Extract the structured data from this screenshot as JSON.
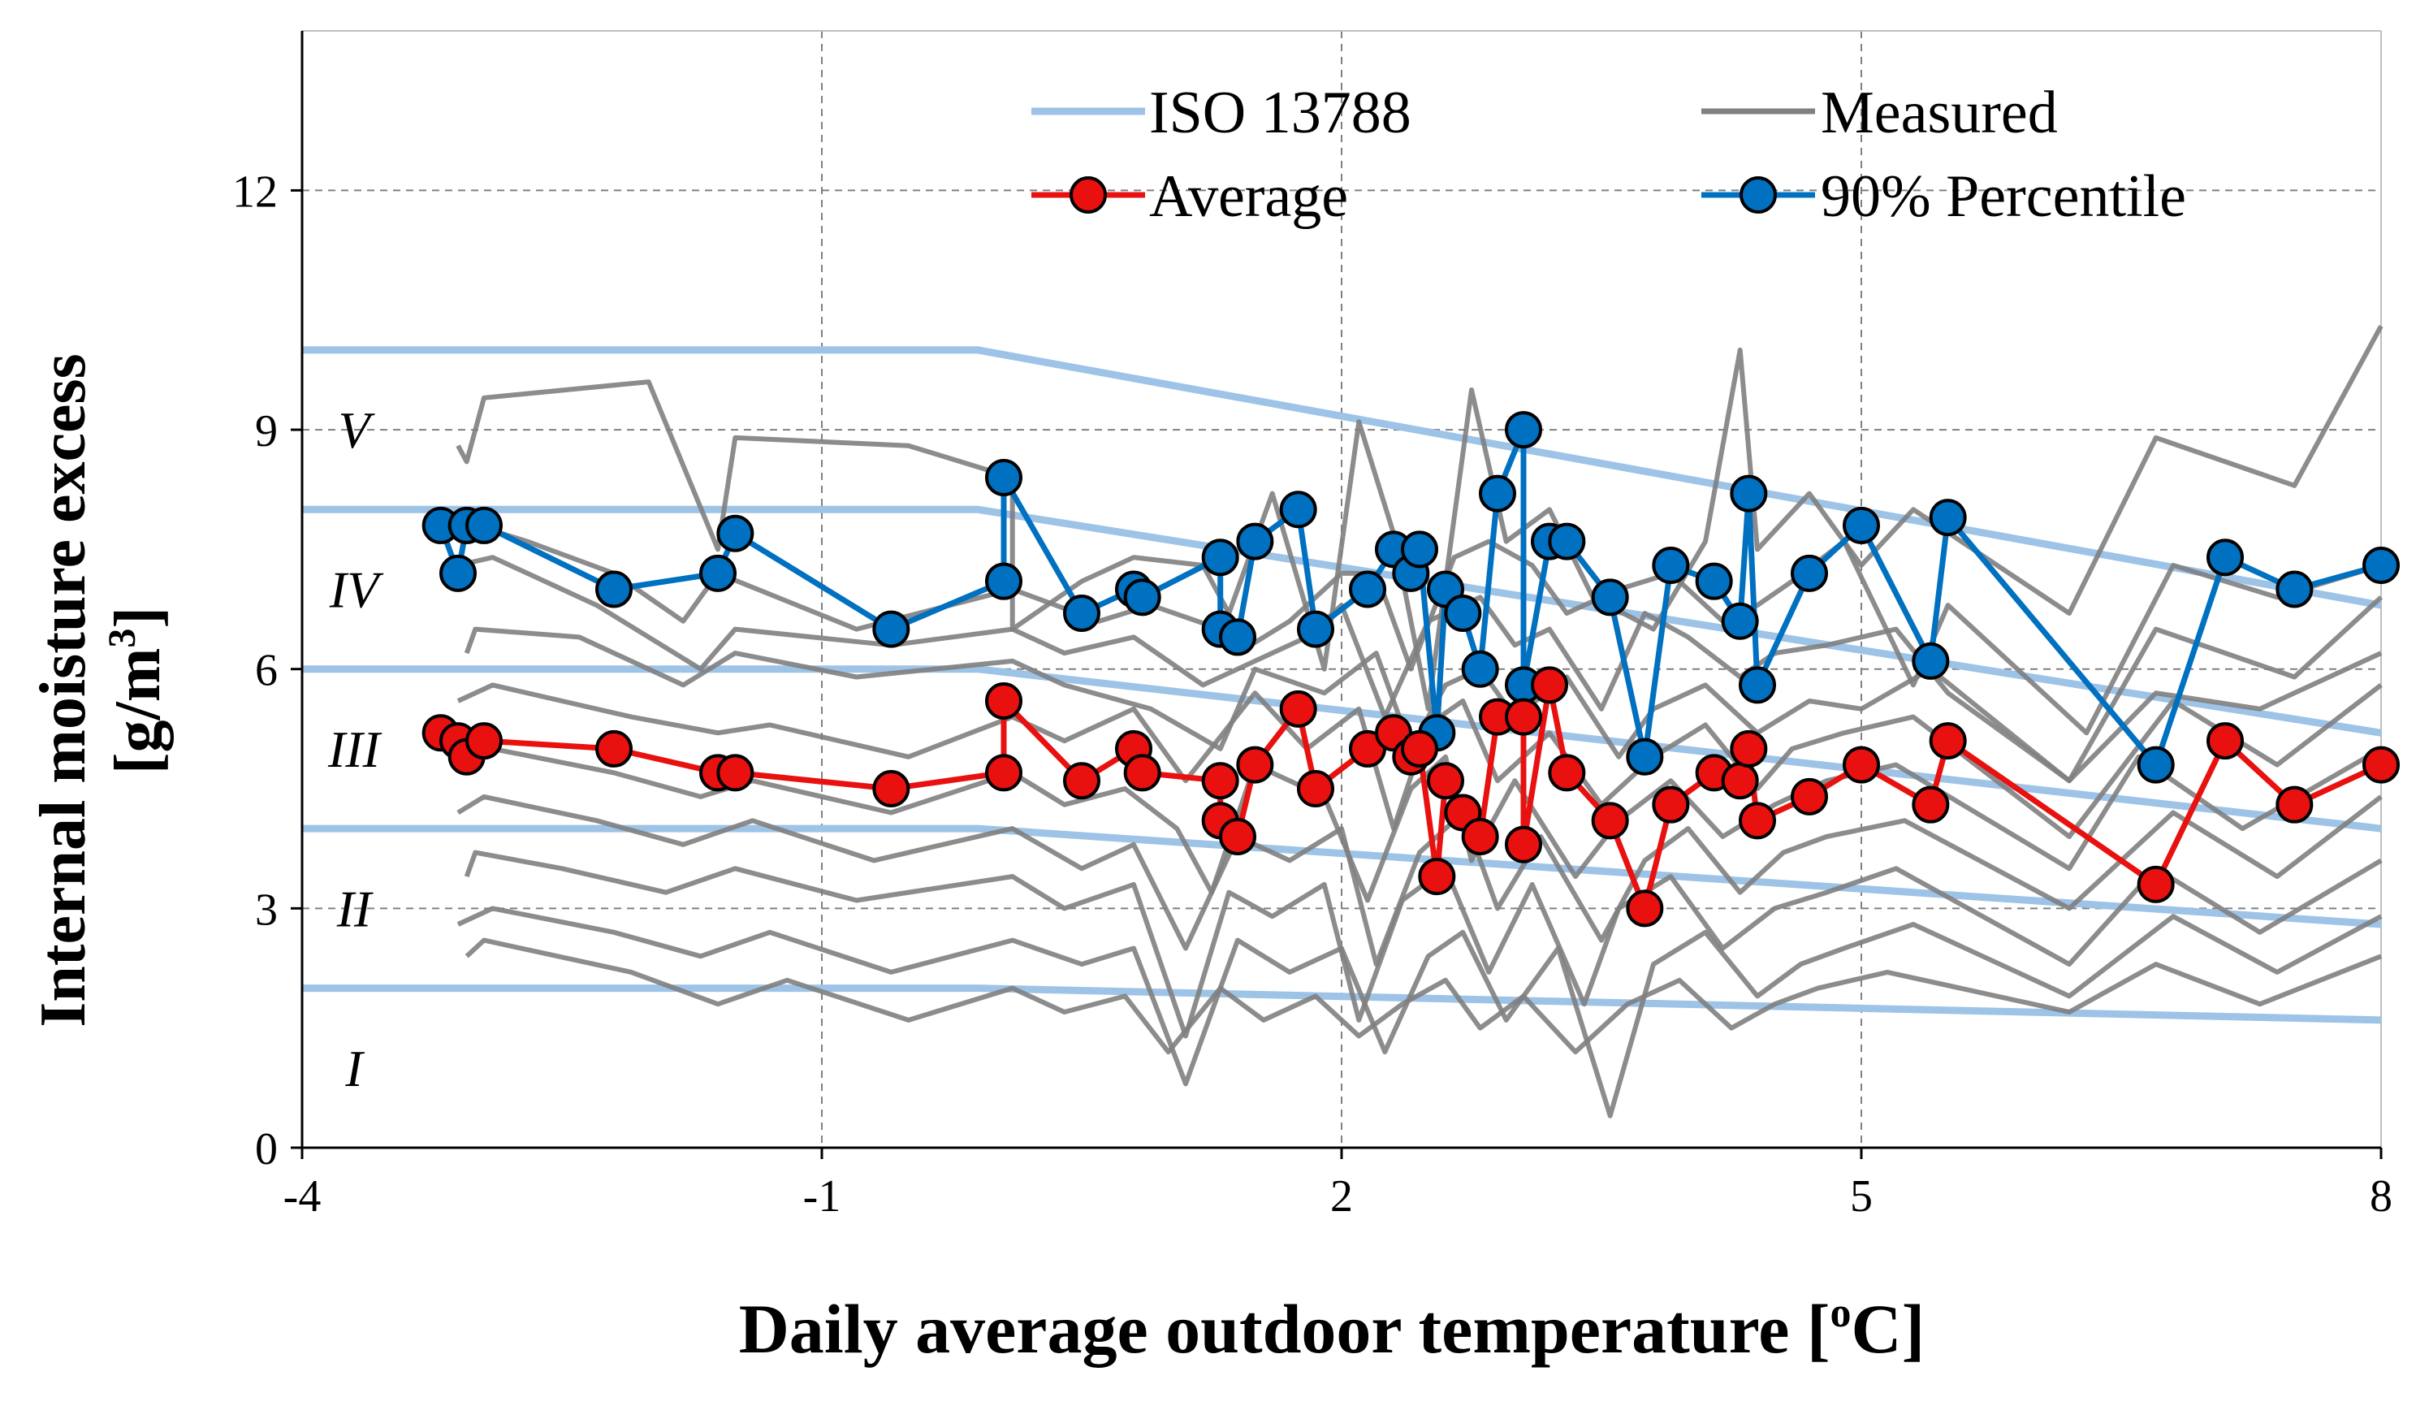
{
  "chart_data": {
    "type": "line",
    "xlabel": "Daily average outdoor temperature [oC]",
    "xlabel_parts": {
      "pre": "Daily average outdoor temperature [",
      "sup": "o",
      "post": "C]"
    },
    "ylabel_line1": "Internal moisture excess",
    "ylabel_line2": {
      "pre": "[g/m",
      "sup": "3",
      "post": "]"
    },
    "xlim": [
      -4,
      8
    ],
    "ylim": [
      0,
      14
    ],
    "x_ticks": [
      -4,
      -1,
      2,
      5,
      8
    ],
    "x_tick_labels": [
      "-4",
      "-1",
      "2",
      "5",
      "8"
    ],
    "y_ticks": [
      0,
      3,
      6,
      9,
      12
    ],
    "y_tick_labels": [
      "0",
      "3",
      "6",
      "9",
      "12"
    ],
    "grid": "dashed",
    "legend_position": "top",
    "legend": {
      "iso": "ISO 13788",
      "measured": "Measured",
      "average": "Average",
      "p90": "90% Percentile"
    },
    "colors": {
      "iso": "#9dc3e6",
      "measured": "#808080",
      "average": "#e8110f",
      "p90": "#0070c0",
      "marker_edge": "#000000",
      "grid": "#808080"
    },
    "zone_labels": [
      {
        "label": "I",
        "x": -3.7,
        "y": 1
      },
      {
        "label": "II",
        "x": -3.7,
        "y": 3
      },
      {
        "label": "III",
        "x": -3.7,
        "y": 5
      },
      {
        "label": "IV",
        "x": -3.7,
        "y": 7
      },
      {
        "label": "V",
        "x": -3.7,
        "y": 9
      }
    ],
    "iso_lines": [
      {
        "name": "I/II",
        "x": [
          -4,
          -0.1,
          8
        ],
        "y": [
          2,
          2,
          1.6
        ]
      },
      {
        "name": "II/III",
        "x": [
          -4,
          -0.1,
          8
        ],
        "y": [
          4,
          4,
          2.8
        ]
      },
      {
        "name": "III/IV",
        "x": [
          -4,
          -0.1,
          8
        ],
        "y": [
          6,
          6,
          4
        ]
      },
      {
        "name": "IV/V",
        "x": [
          -4,
          -0.1,
          8
        ],
        "y": [
          8,
          8,
          5.2
        ]
      },
      {
        "name": "V",
        "x": [
          -4,
          -0.1,
          8
        ],
        "y": [
          10,
          10,
          6.8
        ]
      }
    ],
    "measured_series": [
      {
        "x": [
          -3.1,
          -3.05,
          -2.95,
          -2.0,
          -1.6,
          -1.5,
          -0.5,
          0.1,
          0.1,
          0.5,
          0.8,
          1.2,
          1.35,
          1.6,
          1.9,
          2.1,
          2.3,
          2.5,
          2.75,
          2.95,
          3.2,
          3.45,
          3.8,
          4.1,
          4.3,
          4.4,
          4.7,
          5.0,
          5.3,
          6.2,
          6.7,
          7.5,
          8.0
        ],
        "y": [
          8.8,
          8.6,
          9.4,
          9.6,
          7.5,
          8.9,
          8.8,
          8.4,
          6.5,
          7.1,
          7.4,
          7.3,
          6.7,
          8.2,
          6.0,
          9.1,
          7.7,
          5.5,
          9.5,
          7.6,
          8.0,
          6.9,
          6.5,
          7.6,
          10.0,
          7.5,
          8.2,
          7.3,
          8.0,
          6.7,
          8.9,
          8.3,
          10.3
        ]
      },
      {
        "x": [
          -3.0,
          -2.7,
          -2.2,
          -1.8,
          -1.6,
          -0.8,
          0.1,
          0.6,
          0.9,
          1.3,
          1.4,
          1.7,
          2.0,
          2.2,
          2.4,
          2.65,
          2.85,
          3.1,
          3.3,
          3.6,
          3.9,
          4.2,
          4.4,
          4.6,
          4.9,
          5.3,
          5.5,
          6.3,
          6.8,
          7.4,
          8.0
        ],
        "y": [
          7.8,
          7.6,
          7.2,
          6.6,
          7.2,
          6.5,
          7.0,
          6.6,
          6.8,
          6.5,
          6.2,
          6.6,
          7.2,
          7.2,
          6.0,
          7.4,
          7.6,
          7.3,
          6.7,
          7.0,
          7.2,
          6.6,
          6.8,
          7.1,
          7.6,
          5.8,
          6.8,
          5.2,
          7.3,
          6.9,
          7.3
        ]
      },
      {
        "x": [
          -3.1,
          -2.9,
          -2.3,
          -1.7,
          -1.5,
          -0.6,
          0.1,
          0.4,
          0.8,
          1.2,
          1.4,
          1.8,
          2.0,
          2.25,
          2.5,
          2.8,
          3.0,
          3.2,
          3.5,
          3.75,
          4.0,
          4.3,
          4.5,
          4.8,
          5.2,
          5.5,
          6.2,
          6.7,
          7.5,
          8.0
        ],
        "y": [
          7.3,
          7.4,
          6.8,
          6.0,
          6.5,
          6.3,
          6.5,
          6.2,
          6.4,
          5.8,
          6.0,
          6.4,
          6.8,
          5.4,
          6.6,
          6.9,
          6.3,
          6.5,
          5.5,
          6.7,
          6.4,
          5.9,
          6.2,
          6.3,
          6.5,
          5.7,
          4.6,
          6.5,
          5.9,
          6.9
        ]
      },
      {
        "x": [
          -3.05,
          -3.0,
          -2.4,
          -1.8,
          -1.5,
          -0.8,
          0.1,
          0.4,
          0.9,
          1.3,
          1.5,
          1.9,
          2.2,
          2.4,
          2.6,
          2.8,
          3.0,
          3.3,
          3.6,
          3.8,
          4.1,
          4.4,
          4.7,
          5.0,
          5.4,
          6.2,
          6.7,
          7.3,
          8.0
        ],
        "y": [
          6.2,
          6.5,
          6.4,
          5.8,
          6.2,
          5.9,
          6.1,
          5.8,
          5.5,
          5.0,
          6.0,
          5.7,
          6.2,
          5.0,
          5.8,
          6.0,
          5.4,
          5.9,
          4.9,
          5.5,
          5.8,
          5.2,
          5.6,
          5.5,
          6.0,
          4.6,
          5.7,
          5.5,
          6.2
        ]
      },
      {
        "x": [
          -3.1,
          -2.9,
          -2.1,
          -1.6,
          -1.3,
          -0.5,
          0.1,
          0.4,
          0.8,
          1.1,
          1.5,
          1.8,
          2.1,
          2.3,
          2.5,
          2.7,
          2.9,
          3.2,
          3.5,
          3.8,
          4.1,
          4.4,
          4.6,
          4.9,
          5.3,
          6.2,
          6.8,
          7.4,
          8.0
        ],
        "y": [
          5.6,
          5.8,
          5.4,
          5.2,
          5.3,
          4.9,
          5.4,
          5.1,
          5.5,
          4.6,
          5.7,
          5.0,
          5.5,
          4.0,
          5.3,
          5.6,
          4.6,
          5.2,
          4.3,
          4.9,
          5.3,
          4.5,
          5.0,
          5.2,
          5.4,
          3.9,
          5.6,
          4.8,
          5.8
        ]
      },
      {
        "x": [
          -3.05,
          -2.9,
          -2.2,
          -1.7,
          -1.4,
          -0.6,
          0.1,
          0.4,
          0.75,
          1.05,
          1.25,
          1.5,
          1.9,
          2.15,
          2.4,
          2.6,
          2.75,
          3.0,
          3.35,
          3.6,
          3.9,
          4.2,
          4.5,
          4.8,
          5.2,
          6.2,
          6.6,
          7.2,
          8.0
        ],
        "y": [
          4.8,
          5.0,
          4.7,
          4.4,
          4.6,
          4.2,
          4.7,
          4.3,
          4.5,
          4.0,
          3.2,
          4.8,
          4.4,
          3.1,
          4.5,
          4.9,
          3.6,
          4.6,
          3.4,
          4.1,
          4.6,
          3.9,
          4.3,
          4.6,
          4.8,
          3.5,
          4.9,
          4.0,
          5.0
        ]
      },
      {
        "x": [
          -3.1,
          -2.95,
          -2.3,
          -1.8,
          -1.4,
          -0.7,
          0.1,
          0.5,
          0.8,
          1.1,
          1.4,
          1.7,
          2.0,
          2.2,
          2.45,
          2.7,
          2.9,
          3.15,
          3.5,
          3.75,
          4.0,
          4.3,
          4.55,
          4.8,
          5.25,
          6.2,
          6.8,
          7.4,
          8.0
        ],
        "y": [
          4.2,
          4.4,
          4.1,
          3.8,
          4.1,
          3.6,
          4.0,
          3.5,
          3.8,
          2.5,
          3.9,
          3.6,
          4.0,
          2.3,
          3.7,
          4.2,
          3.0,
          3.9,
          2.6,
          3.6,
          4.0,
          3.2,
          3.7,
          3.9,
          4.1,
          3.0,
          4.2,
          3.4,
          4.4
        ]
      },
      {
        "x": [
          -3.05,
          -3.0,
          -2.5,
          -1.9,
          -1.5,
          -0.8,
          0.1,
          0.4,
          0.8,
          1.1,
          1.35,
          1.6,
          1.9,
          2.1,
          2.35,
          2.6,
          2.85,
          3.1,
          3.4,
          3.6,
          3.9,
          4.2,
          4.5,
          4.8,
          5.2,
          6.2,
          6.7,
          7.3,
          8.0
        ],
        "y": [
          3.4,
          3.7,
          3.5,
          3.2,
          3.5,
          3.1,
          3.4,
          3.0,
          3.3,
          1.4,
          3.2,
          2.9,
          3.3,
          1.6,
          3.1,
          3.5,
          2.2,
          3.3,
          1.8,
          3.0,
          3.4,
          2.5,
          3.0,
          3.2,
          3.5,
          2.3,
          3.5,
          2.7,
          3.6
        ]
      },
      {
        "x": [
          -3.1,
          -2.9,
          -2.2,
          -1.7,
          -1.3,
          -0.6,
          0.1,
          0.5,
          0.8,
          1.1,
          1.4,
          1.7,
          2.0,
          2.25,
          2.5,
          2.7,
          2.95,
          3.25,
          3.55,
          3.8,
          4.1,
          4.4,
          4.65,
          4.9,
          5.3,
          6.2,
          6.8,
          7.4,
          8.0
        ],
        "y": [
          2.8,
          3.0,
          2.7,
          2.4,
          2.7,
          2.2,
          2.6,
          2.3,
          2.5,
          0.8,
          2.6,
          2.2,
          2.5,
          1.2,
          2.4,
          2.7,
          1.6,
          2.5,
          0.4,
          2.3,
          2.7,
          1.9,
          2.3,
          2.5,
          2.8,
          1.9,
          2.9,
          2.2,
          2.9
        ]
      },
      {
        "x": [
          -3.05,
          -2.95,
          -2.1,
          -1.6,
          -1.2,
          -0.5,
          0.1,
          0.4,
          0.75,
          1.0,
          1.3,
          1.55,
          1.85,
          2.1,
          2.35,
          2.6,
          2.8,
          3.05,
          3.35,
          3.65,
          3.95,
          4.25,
          4.5,
          4.75,
          5.15,
          6.2,
          6.7,
          7.3,
          8.0
        ],
        "y": [
          2.4,
          2.6,
          2.2,
          1.8,
          2.1,
          1.6,
          2.0,
          1.7,
          1.9,
          1.2,
          2.0,
          1.6,
          1.9,
          1.4,
          1.8,
          2.1,
          1.5,
          1.9,
          1.2,
          1.8,
          2.1,
          1.5,
          1.8,
          2.0,
          2.2,
          1.7,
          2.3,
          1.8,
          2.4
        ]
      }
    ],
    "average": {
      "x": [
        -3.2,
        -3.1,
        -3.05,
        -2.95,
        -2.2,
        -1.6,
        -1.5,
        -0.6,
        0.05,
        0.05,
        0.5,
        0.8,
        0.85,
        1.3,
        1.3,
        1.4,
        1.5,
        1.75,
        1.85,
        2.15,
        2.3,
        2.4,
        2.45,
        2.55,
        2.6,
        2.7,
        2.8,
        2.9,
        3.05,
        3.05,
        3.2,
        3.3,
        3.55,
        3.75,
        3.9,
        4.15,
        4.3,
        4.35,
        4.4,
        4.7,
        5.0,
        5.4,
        5.5,
        6.7,
        7.1,
        7.5,
        8.0
      ],
      "y": [
        5.2,
        5.1,
        4.9,
        5.1,
        5.0,
        4.7,
        4.7,
        4.5,
        4.7,
        5.6,
        4.6,
        5.0,
        4.7,
        4.6,
        4.1,
        3.9,
        4.8,
        5.5,
        4.5,
        5.0,
        5.2,
        4.9,
        5.0,
        3.4,
        4.6,
        4.2,
        3.9,
        5.4,
        5.4,
        3.8,
        5.8,
        4.7,
        4.1,
        3.0,
        4.3,
        4.7,
        4.6,
        5.0,
        4.1,
        4.4,
        4.8,
        4.3,
        5.1,
        3.3,
        5.1,
        4.3,
        4.8
      ]
    },
    "percentile90": {
      "x": [
        -3.2,
        -3.1,
        -3.05,
        -2.95,
        -2.2,
        -1.6,
        -1.5,
        -0.6,
        0.05,
        0.05,
        0.5,
        0.8,
        0.85,
        1.3,
        1.3,
        1.4,
        1.5,
        1.75,
        1.85,
        2.15,
        2.3,
        2.4,
        2.45,
        2.55,
        2.6,
        2.7,
        2.8,
        2.9,
        3.05,
        3.05,
        3.2,
        3.3,
        3.55,
        3.75,
        3.9,
        4.15,
        4.3,
        4.35,
        4.4,
        4.7,
        5.0,
        5.4,
        5.5,
        6.7,
        7.1,
        7.5,
        8.0
      ],
      "y": [
        7.8,
        7.2,
        7.8,
        7.8,
        7.0,
        7.2,
        7.7,
        6.5,
        7.1,
        8.4,
        6.7,
        7.0,
        6.9,
        7.4,
        6.5,
        6.4,
        7.6,
        8.0,
        6.5,
        7.0,
        7.5,
        7.2,
        7.5,
        5.2,
        7.0,
        6.7,
        6.0,
        8.2,
        9.0,
        5.8,
        7.6,
        7.6,
        6.9,
        4.9,
        7.3,
        7.1,
        6.6,
        8.2,
        5.8,
        7.2,
        7.8,
        6.1,
        7.9,
        4.8,
        7.4,
        7.0,
        7.3
      ]
    }
  }
}
